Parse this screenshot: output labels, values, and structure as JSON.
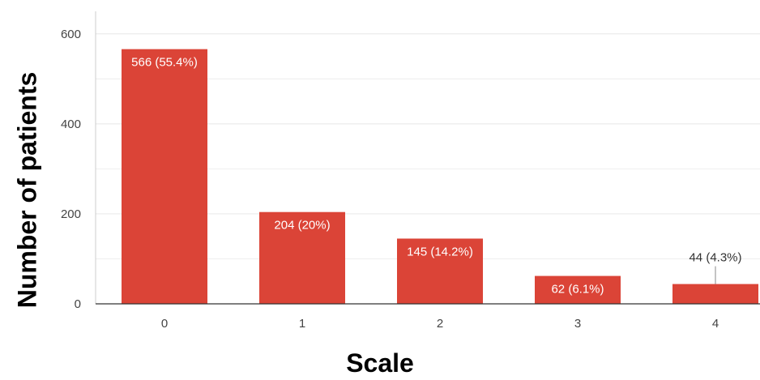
{
  "chart_data": {
    "type": "bar",
    "title": "",
    "xlabel": "Scale",
    "ylabel": "Number of patients",
    "categories": [
      "0",
      "1",
      "2",
      "3",
      "4"
    ],
    "values": [
      566,
      204,
      145,
      62,
      44
    ],
    "data_labels": [
      "566 (55.4%)",
      "204 (20%)",
      "145 (14.2%)",
      "62 (6.1%)",
      "44 (4.3%)"
    ],
    "ylim": [
      0,
      650
    ],
    "yticks": [
      0,
      200,
      400,
      600
    ],
    "grid": true,
    "bar_color": "#db4437",
    "grid_color": "#ebebeb"
  }
}
